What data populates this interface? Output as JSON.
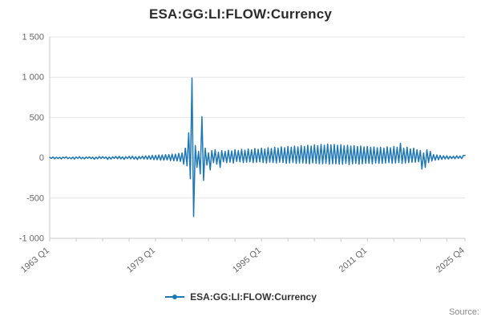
{
  "title": "ESA:GG:LI:FLOW:Currency",
  "legend": {
    "label": "ESA:GG:LI:FLOW:Currency"
  },
  "source_label": "Source:",
  "colors": {
    "line": "#1f77b4",
    "grid": "#e6e6e6",
    "axis": "#c9c9c9",
    "tick_text": "#666666",
    "title_text": "#2b2b2b"
  },
  "chart_data": {
    "type": "line",
    "title": "ESA:GG:LI:FLOW:Currency",
    "xlabel": "",
    "ylabel": "",
    "grid": true,
    "legend_position": "bottom",
    "ylim": [
      -1000,
      1500
    ],
    "y_ticks": [
      -1000,
      -500,
      0,
      500,
      1000,
      1500
    ],
    "y_tick_labels": [
      "-1 000",
      "-500",
      "0",
      "500",
      "1 000",
      "1 500"
    ],
    "x_tick_labels": [
      "1963 Q1",
      "1979 Q1",
      "1995 Q1",
      "2011 Q1",
      "2025 Q4"
    ],
    "x_tick_indices": [
      0,
      64,
      128,
      192,
      251
    ],
    "x_minor_tick_indices": [
      0,
      16,
      32,
      48,
      64,
      80,
      96,
      112,
      128,
      144,
      160,
      176,
      192,
      208,
      224,
      240,
      251
    ],
    "x_start": "1963 Q1",
    "x_end": "2025 Q4",
    "frequency": "quarterly",
    "series": [
      {
        "name": "ESA:GG:LI:FLOW:Currency",
        "values": [
          5,
          -8,
          10,
          -12,
          7,
          -10,
          6,
          -14,
          9,
          -6,
          12,
          -10,
          4,
          -12,
          8,
          -16,
          10,
          -8,
          14,
          -12,
          6,
          -14,
          10,
          -8,
          12,
          -10,
          8,
          -18,
          8,
          -12,
          15,
          -10,
          14,
          -8,
          10,
          -20,
          10,
          -16,
          12,
          -8,
          16,
          -12,
          18,
          -14,
          12,
          -20,
          14,
          -10,
          18,
          -14,
          20,
          -16,
          14,
          -22,
          16,
          -12,
          20,
          -16,
          24,
          -18,
          25,
          -20,
          30,
          -24,
          30,
          -25,
          35,
          -30,
          35,
          -30,
          40,
          -28,
          40,
          -35,
          45,
          -38,
          45,
          -40,
          55,
          -45,
          60,
          -80,
          120,
          -100,
          310,
          -260,
          990,
          -730,
          150,
          -120,
          80,
          -200,
          510,
          -280,
          120,
          -90,
          60,
          -150,
          90,
          -60,
          100,
          -80,
          70,
          -120,
          90,
          -50,
          80,
          -60,
          95,
          -55,
          85,
          -65,
          100,
          -45,
          90,
          -50,
          105,
          -60,
          95,
          -55,
          110,
          -50,
          100,
          -60,
          115,
          -55,
          105,
          -50,
          120,
          -60,
          110,
          -65,
          125,
          -55,
          115,
          -60,
          130,
          -65,
          120,
          -55,
          135,
          -60,
          125,
          -70,
          140,
          -65,
          130,
          -60,
          145,
          -70,
          135,
          -65,
          150,
          -65,
          140,
          -70,
          155,
          -75,
          145,
          -65,
          160,
          -70,
          150,
          -75,
          165,
          -75,
          155,
          -70,
          170,
          -80,
          160,
          -75,
          165,
          -75,
          155,
          -80,
          160,
          -80,
          150,
          -70,
          155,
          -85,
          145,
          -75,
          150,
          -70,
          140,
          -80,
          145,
          -75,
          135,
          -70,
          140,
          -70,
          130,
          -75,
          135,
          -65,
          125,
          -70,
          130,
          -70,
          120,
          -65,
          135,
          -60,
          125,
          -70,
          140,
          -65,
          130,
          -60,
          180,
          -70,
          120,
          -65,
          130,
          -60,
          110,
          -55,
          120,
          -55,
          100,
          -50,
          90,
          -140,
          60,
          -120,
          100,
          -60,
          80,
          -40,
          40,
          -30,
          35,
          -25,
          30,
          -20,
          25,
          -15,
          25,
          -15,
          20,
          -10,
          20,
          -12,
          25,
          -8,
          22,
          -10,
          28,
          30
        ]
      }
    ]
  }
}
